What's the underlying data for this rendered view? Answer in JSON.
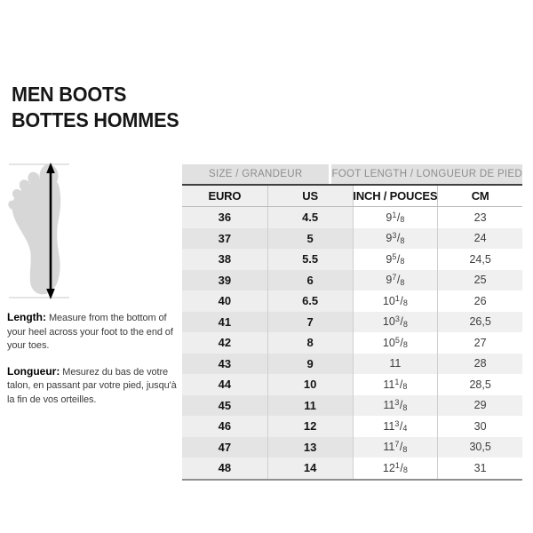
{
  "page_title": {
    "line1": "MEN BOOTS",
    "line2": "BOTTES HOMMES"
  },
  "measure_note": {
    "en_label": "Length:",
    "en_text": "Measure from the bottom of your heel across your foot to the end of your toes.",
    "fr_label": "Longueur:",
    "fr_text": "Mesurez du bas de votre talon, en passant par votre pied, jusqu'à la fin de vos orteilles."
  },
  "icons": {
    "foot_measure": "foot-silhouette-with-vertical-measure-arrow"
  },
  "colors": {
    "group_header_bg": "#e1e1e1",
    "group_header_text": "#8d8d8d",
    "dark_rule": "#3f3f3f",
    "bottom_rule": "#8f8f8f",
    "row_left_light": "#eeeeee",
    "row_left_dark": "#e4e4e4",
    "row_right_white": "#ffffff",
    "row_right_tint": "#f0f0f0",
    "foot_fill": "#d7d7d7",
    "text_black": "#141414",
    "text_gray": "#3d3d3d"
  },
  "chart_data": {
    "type": "table",
    "title": "MEN BOOTS / BOTTES HOMMES",
    "group_headers": [
      "SIZE / GRANDEUR",
      "FOOT LENGTH / LONGUEUR DE PIED"
    ],
    "columns": [
      "EURO",
      "US",
      "INCH / POUCES",
      "CM"
    ],
    "rows": [
      [
        "36",
        "4.5",
        "9 1/8",
        "23"
      ],
      [
        "37",
        "5",
        "9 3/8",
        "24"
      ],
      [
        "38",
        "5.5",
        "9 5/8",
        "24,5"
      ],
      [
        "39",
        "6",
        "9 7/8",
        "25"
      ],
      [
        "40",
        "6.5",
        "10 1/8",
        "26"
      ],
      [
        "41",
        "7",
        "10 3/8",
        "26,5"
      ],
      [
        "42",
        "8",
        "10 5/8",
        "27"
      ],
      [
        "43",
        "9",
        "11",
        "28"
      ],
      [
        "44",
        "10",
        "11 1/8",
        "28,5"
      ],
      [
        "45",
        "11",
        "11 3/8",
        "29"
      ],
      [
        "46",
        "12",
        "11 3/4",
        "30"
      ],
      [
        "47",
        "13",
        "11 7/8",
        "30,5"
      ],
      [
        "48",
        "14",
        "12 1/8",
        "31"
      ]
    ]
  }
}
